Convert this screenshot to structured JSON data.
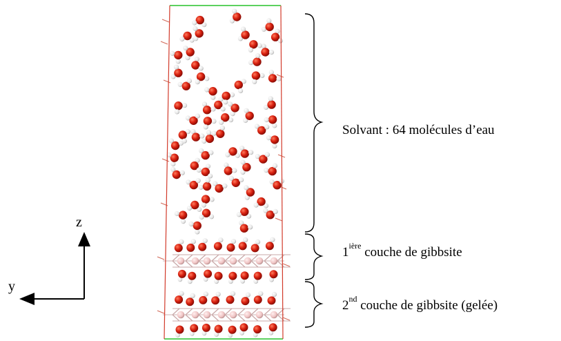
{
  "labels": {
    "solvent": "Solvant : 64 molécules d’eau",
    "layer1": {
      "num": "1",
      "sup": "ière",
      "text": " couche de gibbsite"
    },
    "layer2": {
      "num": "2",
      "sup": "nd",
      "text": " couche de gibbsite (gelée)"
    }
  },
  "axes": {
    "z": "z",
    "y": "y"
  },
  "colors": {
    "cell_side": "#d23a2a",
    "cell_top": "#27c22a",
    "oxygen": "#d21a0a",
    "hydrogen": "#f0f0f0",
    "aluminium": "#f0c8c8"
  }
}
